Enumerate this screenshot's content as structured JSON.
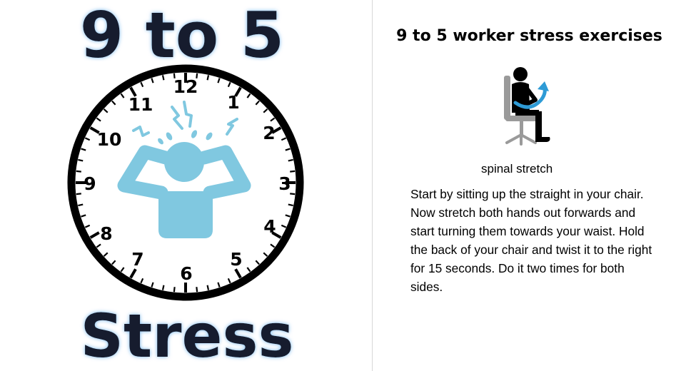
{
  "poster": {
    "headline": "9 to 5",
    "footer_word": "Stress",
    "clock_numbers": [
      "12",
      "1",
      "2",
      "3",
      "4",
      "5",
      "6",
      "7",
      "8",
      "9",
      "10",
      "11"
    ],
    "figure_color": "#80c8e0",
    "figure_icon": "stressed-person-icon"
  },
  "article": {
    "title": "9 to 5 worker stress exercises",
    "figure_icon": "seated-spinal-twist-icon",
    "accent_color": "#2e9bd6",
    "exercise_name": "spinal stretch",
    "exercise_description": "Start by sitting up the straight in your chair. Now stretch both hands out forwards and start turning them towards your waist. Hold the back of your chair and twist it to the right for 15 seconds. Do it two times for both sides."
  }
}
